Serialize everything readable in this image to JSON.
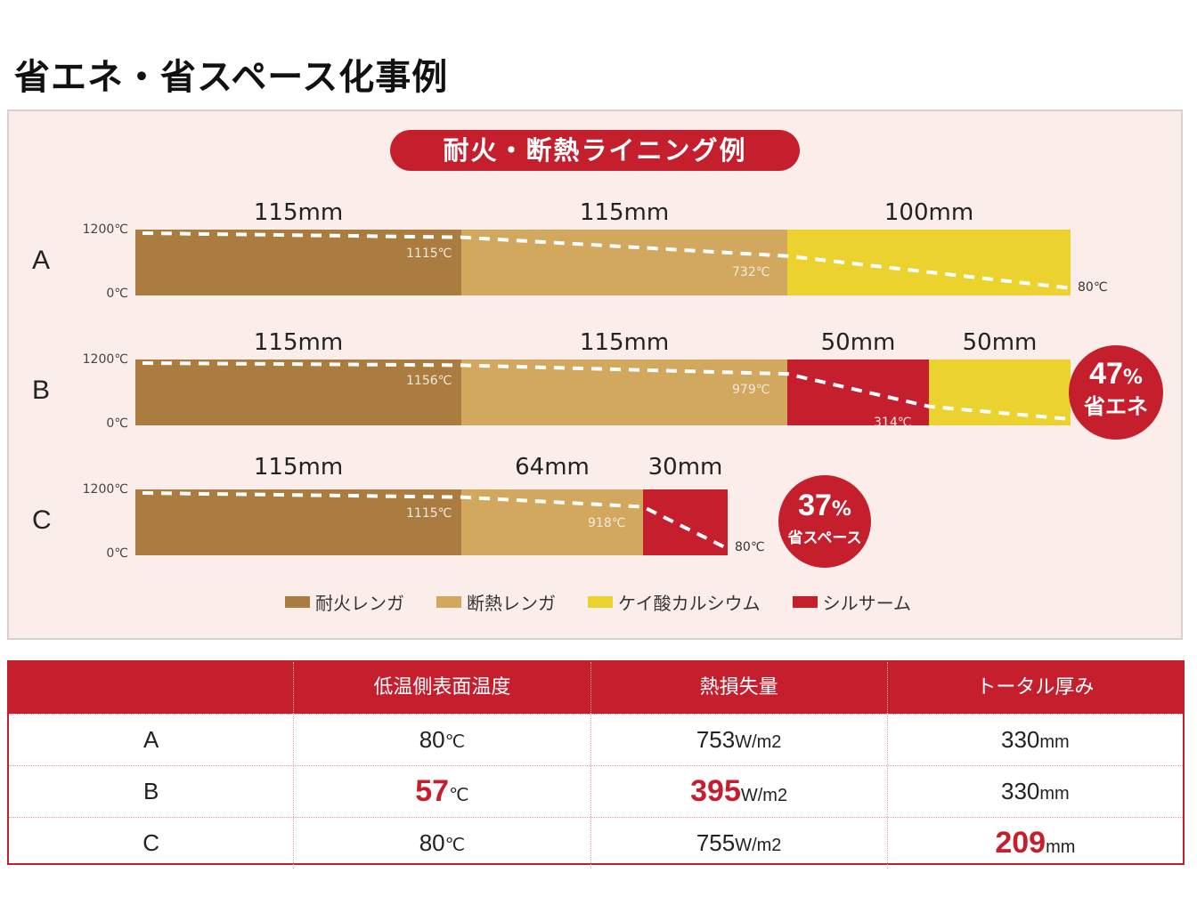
{
  "page_title": "省エネ・省スペース化事例",
  "panel_title": "耐火・断熱ライニング例",
  "axis": {
    "top": "1200℃",
    "bottom": "0℃"
  },
  "colors": {
    "firebrick": "#ab7c40",
    "insulating_brick": "#d2a75e",
    "calcium_silicate": "#ecd22f",
    "silthermal": "#c51f2e",
    "accent_red": "#c51f2e",
    "panel_bg": "#fbeeea"
  },
  "rows": [
    {
      "label": "A",
      "segments": [
        {
          "material": "firebrick",
          "thickness_mm": 115,
          "thickness_label": "115mm",
          "interface_temp": "1115℃"
        },
        {
          "material": "insulating_brick",
          "thickness_mm": 115,
          "thickness_label": "115mm",
          "interface_temp": "732℃"
        },
        {
          "material": "calcium_silicate",
          "thickness_mm": 100,
          "thickness_label": "100mm",
          "interface_temp": "80℃"
        }
      ],
      "temps": [
        1200,
        1115,
        732,
        80
      ],
      "surface_temp_label": "80℃"
    },
    {
      "label": "B",
      "segments": [
        {
          "material": "firebrick",
          "thickness_mm": 115,
          "thickness_label": "115mm",
          "interface_temp": "1156℃"
        },
        {
          "material": "insulating_brick",
          "thickness_mm": 115,
          "thickness_label": "115mm",
          "interface_temp": "979℃"
        },
        {
          "material": "silthermal",
          "thickness_mm": 50,
          "thickness_label": "50mm",
          "interface_temp": "314℃"
        },
        {
          "material": "calcium_silicate",
          "thickness_mm": 50,
          "thickness_label": "50mm",
          "interface_temp": ""
        }
      ],
      "temps": [
        1200,
        1156,
        979,
        314,
        57
      ],
      "surface_temp_num": "57",
      "surface_temp_unit": "℃",
      "badge": {
        "pct": "47",
        "pct_sign": "%",
        "text": "省エネ"
      }
    },
    {
      "label": "C",
      "segments": [
        {
          "material": "firebrick",
          "thickness_mm": 115,
          "thickness_label": "115mm",
          "interface_temp": "1115℃"
        },
        {
          "material": "insulating_brick",
          "thickness_mm": 64,
          "thickness_label": "64mm",
          "interface_temp": "918℃"
        },
        {
          "material": "silthermal",
          "thickness_mm": 30,
          "thickness_label": "30mm",
          "interface_temp": "80℃"
        }
      ],
      "temps": [
        1200,
        1115,
        918,
        80
      ],
      "badge": {
        "pct": "37",
        "pct_sign": "%",
        "text": "省スペース"
      }
    }
  ],
  "legend": [
    {
      "material": "firebrick",
      "label": "耐火レンガ"
    },
    {
      "material": "insulating_brick",
      "label": "断熱レンガ"
    },
    {
      "material": "calcium_silicate",
      "label": "ケイ酸カルシウム"
    },
    {
      "material": "silthermal",
      "label": "シルサーム"
    }
  ],
  "table": {
    "headers": [
      "",
      "低温側表面温度",
      "熱損失量",
      "トータル厚み"
    ],
    "rows": [
      {
        "label": "A",
        "surface": {
          "val": "80",
          "unit": "℃",
          "highlight": false
        },
        "heat_loss": {
          "val": "753",
          "unit": "W/m2",
          "highlight": false
        },
        "thickness": {
          "val": "330",
          "unit": "mm",
          "highlight": false
        }
      },
      {
        "label": "B",
        "surface": {
          "val": "57",
          "unit": "℃",
          "highlight": true
        },
        "heat_loss": {
          "val": "395",
          "unit": "W/m2",
          "highlight": true
        },
        "thickness": {
          "val": "330",
          "unit": "mm",
          "highlight": false
        }
      },
      {
        "label": "C",
        "surface": {
          "val": "80",
          "unit": "℃",
          "highlight": false
        },
        "heat_loss": {
          "val": "755",
          "unit": "W/m2",
          "highlight": false
        },
        "thickness": {
          "val": "209",
          "unit": "mm",
          "highlight": true
        }
      }
    ]
  }
}
